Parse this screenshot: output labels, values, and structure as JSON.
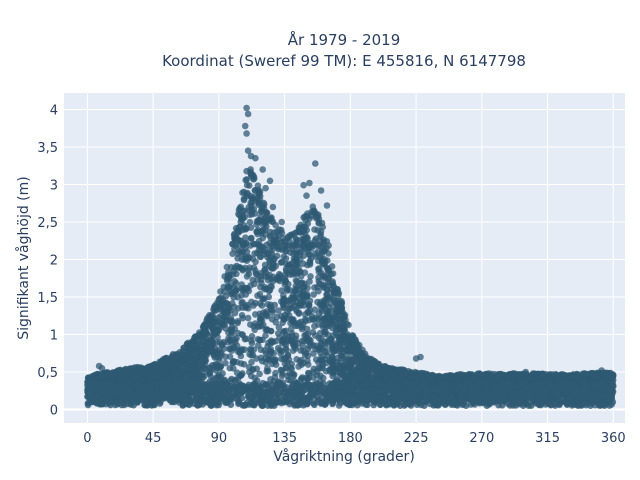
{
  "chart_data": {
    "type": "scatter",
    "title_line1": "År 1979 - 2019",
    "title_line2": "Koordinat (Sweref 99 TM): E 455816, N 6147798",
    "xlabel": "Vågriktning (grader)",
    "ylabel": "Signifikant våghöjd (m)",
    "xlim": [
      -16,
      368
    ],
    "ylim": [
      -0.18,
      4.22
    ],
    "x_ticks": [
      0,
      45,
      90,
      135,
      180,
      225,
      270,
      315,
      360
    ],
    "x_tick_labels": [
      "0",
      "45",
      "90",
      "135",
      "180",
      "225",
      "270",
      "315",
      "360"
    ],
    "y_ticks": [
      0,
      0.5,
      1,
      1.5,
      2,
      2.5,
      3,
      3.5,
      4
    ],
    "y_tick_labels": [
      "0",
      "0,5",
      "1",
      "1,5",
      "2",
      "2,5",
      "3",
      "3,5",
      "4"
    ],
    "grid": true,
    "marker_color": "#2f5a73",
    "background_color": "#e5ecf6",
    "envelope": {
      "direction_deg": [
        0,
        20,
        45,
        60,
        75,
        90,
        100,
        105,
        110,
        115,
        120,
        125,
        130,
        135,
        140,
        145,
        150,
        155,
        160,
        165,
        170,
        180,
        190,
        200,
        210,
        225,
        240,
        270,
        300,
        330,
        360
      ],
      "max_height_m": [
        0.45,
        0.52,
        0.6,
        0.75,
        1.0,
        1.5,
        2.3,
        2.8,
        3.3,
        3.15,
        2.8,
        2.6,
        2.45,
        2.4,
        2.35,
        2.5,
        2.6,
        2.75,
        2.55,
        2.2,
        1.7,
        1.05,
        0.75,
        0.6,
        0.55,
        0.5,
        0.45,
        0.48,
        0.48,
        0.47,
        0.5
      ]
    },
    "outlier_points": [
      {
        "x": 109,
        "y": 4.02
      },
      {
        "x": 110,
        "y": 3.94
      },
      {
        "x": 108,
        "y": 3.78
      },
      {
        "x": 109,
        "y": 3.68
      },
      {
        "x": 110,
        "y": 3.45
      },
      {
        "x": 112,
        "y": 3.38
      },
      {
        "x": 115,
        "y": 3.35
      },
      {
        "x": 120,
        "y": 3.2
      },
      {
        "x": 125,
        "y": 3.05
      },
      {
        "x": 156,
        "y": 3.28
      },
      {
        "x": 148,
        "y": 2.99
      },
      {
        "x": 152,
        "y": 3.02
      },
      {
        "x": 160,
        "y": 2.92
      },
      {
        "x": 150,
        "y": 2.85
      },
      {
        "x": 164,
        "y": 2.72
      },
      {
        "x": 133,
        "y": 2.5
      },
      {
        "x": 127,
        "y": 2.7
      },
      {
        "x": 122,
        "y": 2.95
      },
      {
        "x": 228,
        "y": 0.7
      },
      {
        "x": 225,
        "y": 0.68
      },
      {
        "x": 8,
        "y": 0.58
      },
      {
        "x": 10,
        "y": 0.55
      },
      {
        "x": 352,
        "y": 0.52
      },
      {
        "x": 340,
        "y": 0.48
      },
      {
        "x": 305,
        "y": 0.48
      },
      {
        "x": 300,
        "y": 0.5
      },
      {
        "x": 275,
        "y": 0.48
      },
      {
        "x": 255,
        "y": 0.47
      }
    ]
  }
}
